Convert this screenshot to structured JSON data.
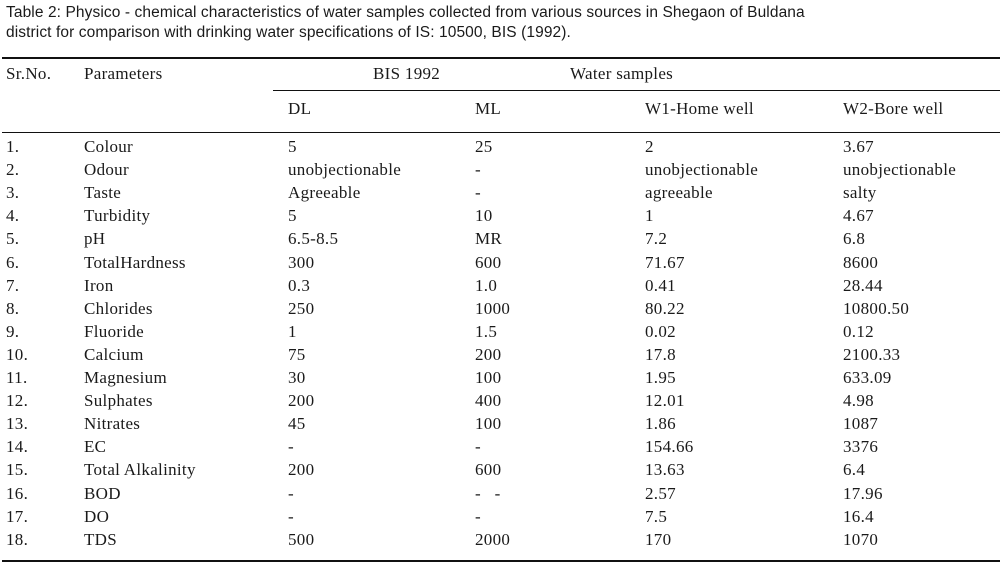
{
  "caption": {
    "line1": "Table 2: Physico - chemical characteristics of water samples collected from various sources in Shegaon of Buldana",
    "line2": "district for comparison with drinking water specifications of IS: 10500, BIS (1992)."
  },
  "table": {
    "header_top": {
      "srno": "Sr.No.",
      "parameters": "Parameters",
      "bis": "BIS 1992",
      "samples": "Water samples"
    },
    "header_sub": [
      "DL",
      "ML",
      "W1-Home well",
      "W2-Bore well"
    ],
    "rows": [
      {
        "sr": "1.",
        "param": "Colour",
        "dl": "5",
        "ml": "25",
        "w1": "2",
        "w2": "3.67"
      },
      {
        "sr": "2.",
        "param": "Odour",
        "dl": "unobjectionable",
        "ml": "-",
        "w1": "unobjectionable",
        "w2": "unobjectionable"
      },
      {
        "sr": "3.",
        "param": "Taste",
        "dl": "Agreeable",
        "ml": "-",
        "w1": "agreeable",
        "w2": "salty"
      },
      {
        "sr": "4.",
        "param": "Turbidity",
        "dl": "5",
        "ml": "10",
        "w1": "1",
        "w2": "4.67"
      },
      {
        "sr": "5.",
        "param": "pH",
        "dl": "6.5-8.5",
        "ml": "MR",
        "w1": "7.2",
        "w2": "6.8"
      },
      {
        "sr": "6.",
        "param": "TotalHardness",
        "dl": "300",
        "ml": "600",
        "w1": "71.67",
        "w2": "8600"
      },
      {
        "sr": "7.",
        "param": "Iron",
        "dl": "0.3",
        "ml": "1.0",
        "w1": "0.41",
        "w2": "28.44"
      },
      {
        "sr": "8.",
        "param": "Chlorides",
        "dl": "250",
        "ml": "1000",
        "w1": "80.22",
        "w2": "10800.50"
      },
      {
        "sr": "9.",
        "param": "Fluoride",
        "dl": "1",
        "ml": "1.5",
        "w1": "0.02",
        "w2": "0.12"
      },
      {
        "sr": "10.",
        "param": "Calcium",
        "dl": "75",
        "ml": "200",
        "w1": "17.8",
        "w2": "2100.33"
      },
      {
        "sr": "11.",
        "param": "Magnesium",
        "dl": "30",
        "ml": "100",
        "w1": "1.95",
        "w2": "633.09"
      },
      {
        "sr": "12.",
        "param": "Sulphates",
        "dl": "200",
        "ml": "400",
        "w1": "12.01",
        "w2": "4.98"
      },
      {
        "sr": "13.",
        "param": "Nitrates",
        "dl": "45",
        "ml": "100",
        "w1": "1.86",
        "w2": "1087"
      },
      {
        "sr": "14.",
        "param": "EC",
        "dl": "-",
        "ml": "-",
        "w1": "154.66",
        "w2": "3376"
      },
      {
        "sr": "15.",
        "param": "Total Alkalinity",
        "dl": "200",
        "ml": "600",
        "w1": "13.63",
        "w2": "6.4"
      },
      {
        "sr": "16.",
        "param": "BOD",
        "dl": "-",
        "ml": "-   -",
        "w1": "2.57",
        "w2": "17.96"
      },
      {
        "sr": "17.",
        "param": "DO",
        "dl": "-",
        "ml": "-",
        "w1": "7.5",
        "w2": "16.4"
      },
      {
        "sr": "18.",
        "param": "TDS",
        "dl": "500",
        "ml": "2000",
        "w1": "170",
        "w2": "1070"
      }
    ]
  }
}
